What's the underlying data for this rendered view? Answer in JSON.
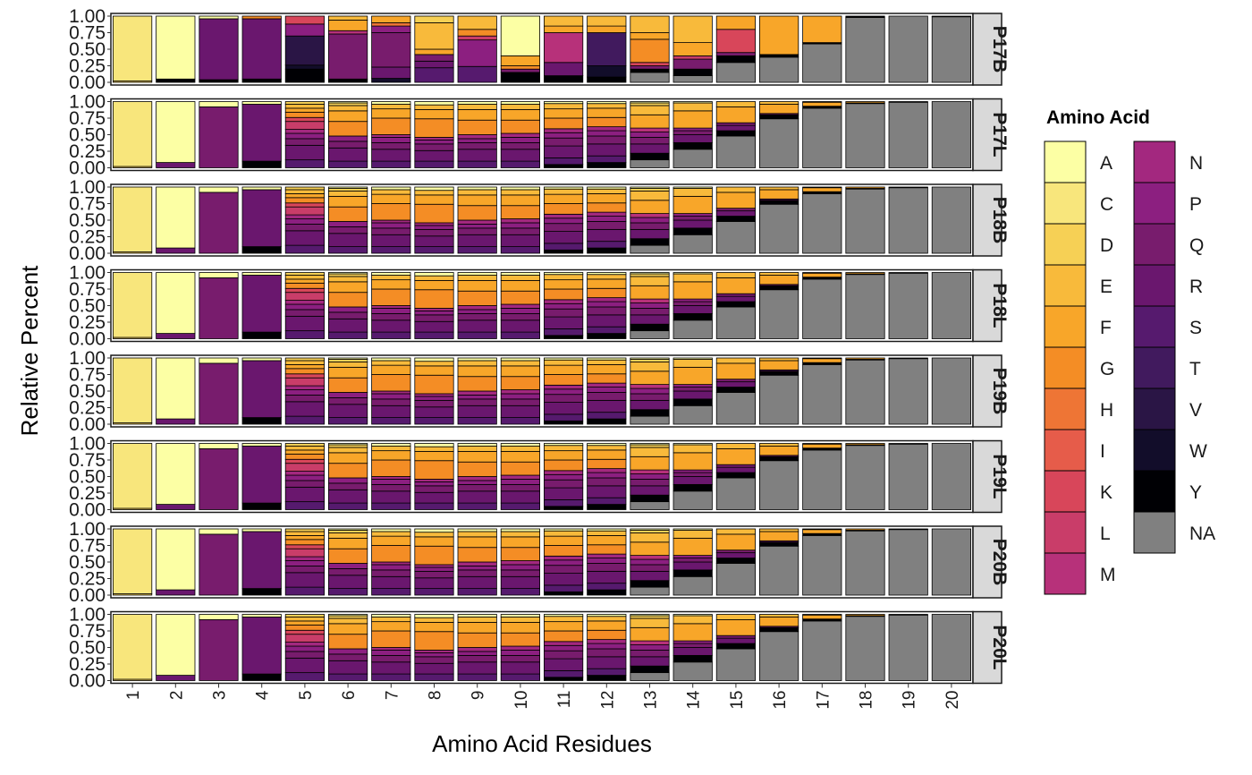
{
  "chart_data": {
    "type": "bar",
    "stacked": true,
    "faceted": true,
    "xlabel": "Amino Acid Residues",
    "ylabel": "Relative Percent",
    "ylim": [
      0,
      1
    ],
    "y_ticks": [
      "0.00",
      "0.25",
      "0.50",
      "0.75",
      "1.00"
    ],
    "categories": [
      "1",
      "2",
      "3",
      "4",
      "5",
      "6",
      "7",
      "8",
      "9",
      "10",
      "11",
      "12",
      "13",
      "14",
      "15",
      "16",
      "17",
      "18",
      "19",
      "20"
    ],
    "panels": [
      "P17B",
      "P17L",
      "P18B",
      "P18L",
      "P19B",
      "P19L",
      "P20B",
      "P20L"
    ],
    "legend": {
      "title": "Amino Acid",
      "placement": "right",
      "entries": [
        "A",
        "C",
        "D",
        "E",
        "F",
        "G",
        "H",
        "I",
        "K",
        "L",
        "M",
        "N",
        "P",
        "Q",
        "R",
        "S",
        "T",
        "V",
        "W",
        "Y",
        "NA"
      ]
    },
    "colors": {
      "A": "#FCFFA4",
      "C": "#F8E67C",
      "D": "#F6D055",
      "E": "#F8BA3B",
      "F": "#F8A629",
      "G": "#F48D25",
      "H": "#EE7535",
      "I": "#E65C4A",
      "K": "#D8465A",
      "L": "#C93D69",
      "M": "#B7317A",
      "N": "#A3287F",
      "P": "#8C1F80",
      "Q": "#781C6D",
      "R": "#6A176E",
      "S": "#561A6E",
      "T": "#411A5E",
      "V": "#2A1545",
      "W": "#120D2A",
      "Y": "#000004",
      "NA": "#808080",
      "panel_border": "#1a1a1a",
      "strip_fill": "#d9d9d9"
    },
    "composition": {
      "P17B": [
        {
          "C": 0.98,
          "D": 0.02
        },
        {
          "A": 0.95,
          "Y": 0.05
        },
        {
          "A": 0.04,
          "R": 0.92,
          "Y": 0.04
        },
        {
          "G": 0.04,
          "R": 0.91,
          "Y": 0.05
        },
        {
          "W": 0.06,
          "K": 0.12,
          "P": 0.18,
          "V": 0.44,
          "Y": 0.2
        },
        {
          "E": 0.06,
          "F": 0.16,
          "Y": 0.05,
          "M": 0.05,
          "Q": 0.68
        },
        {
          "W": 0.06,
          "F": 0.1,
          "H": 0.05,
          "P": 0.1,
          "Q": 0.52,
          "R": 0.17
        },
        {
          "E": 0.4,
          "D": 0.1,
          "F": 0.08,
          "Q": 0.1,
          "R": 0.1,
          "S": 0.22
        },
        {
          "E": 0.2,
          "G": 0.1,
          "L": 0.06,
          "P": 0.4,
          "S": 0.24
        },
        {
          "A": 0.6,
          "G": 0.05,
          "F": 0.15,
          "Q": 0.05,
          "Y": 0.15
        },
        {
          "E": 0.15,
          "F": 0.1,
          "Y": 0.1,
          "M": 0.45,
          "R": 0.2
        },
        {
          "E": 0.15,
          "F": 0.1,
          "Y": 0.08,
          "T": 0.5,
          "W": 0.17
        },
        {
          "E": 0.25,
          "F": 0.1,
          "G": 0.35,
          "K": 0.05,
          "Q": 0.05,
          "Y": 0.05,
          "NA": 0.15
        },
        {
          "E": 0.4,
          "F": 0.2,
          "Y": 0.1,
          "L": 0.05,
          "Q": 0.15,
          "NA": 0.1
        },
        {
          "F": 0.2,
          "K": 0.35,
          "Y": 0.1,
          "Q": 0.05,
          "NA": 0.3
        },
        {
          "F": 0.58,
          "Y": 0.04,
          "NA": 0.38
        },
        {
          "F": 0.4,
          "Y": 0.02,
          "NA": 0.58
        },
        {
          "Y": 0.02,
          "NA": 0.98
        },
        {
          "NA": 1.0
        },
        {
          "Y": 0.01,
          "NA": 0.99
        }
      ],
      "P17L": "profile",
      "P18B": "profile",
      "P18L": "profile",
      "P19B": "profile",
      "P19L": "profile",
      "P20B": "profile",
      "P20L": "profile"
    },
    "profile": [
      {
        "D": 0.02,
        "C": 0.98
      },
      {
        "R": 0.08,
        "A": 0.92
      },
      {
        "Q": 0.92,
        "A": 0.08
      },
      {
        "R": 0.86,
        "Y": 0.1,
        "A": 0.04
      },
      {
        "R": 0.22,
        "S": 0.12,
        "Q": 0.1,
        "P": 0.08,
        "N": 0.06,
        "L": 0.12,
        "K": 0.06,
        "G": 0.08,
        "F": 0.06,
        "E": 0.06,
        "D": 0.04
      },
      {
        "R": 0.2,
        "S": 0.1,
        "Q": 0.1,
        "P": 0.08,
        "G": 0.22,
        "F": 0.16,
        "E": 0.08,
        "D": 0.04,
        "A": 0.02
      },
      {
        "R": 0.18,
        "S": 0.1,
        "Q": 0.1,
        "P": 0.08,
        "N": 0.04,
        "G": 0.25,
        "F": 0.14,
        "E": 0.07,
        "A": 0.04
      },
      {
        "R": 0.16,
        "S": 0.1,
        "Q": 0.1,
        "P": 0.06,
        "N": 0.04,
        "G": 0.28,
        "F": 0.14,
        "E": 0.07,
        "A": 0.05
      },
      {
        "R": 0.18,
        "S": 0.1,
        "Q": 0.1,
        "P": 0.06,
        "N": 0.06,
        "G": 0.22,
        "F": 0.16,
        "E": 0.08,
        "A": 0.04
      },
      {
        "R": 0.18,
        "S": 0.1,
        "Q": 0.1,
        "P": 0.08,
        "N": 0.06,
        "G": 0.2,
        "F": 0.16,
        "E": 0.08,
        "A": 0.04
      },
      {
        "Y": 0.05,
        "R": 0.18,
        "S": 0.1,
        "Q": 0.12,
        "P": 0.08,
        "N": 0.06,
        "G": 0.16,
        "F": 0.14,
        "E": 0.08,
        "A": 0.03
      },
      {
        "Y": 0.08,
        "R": 0.18,
        "S": 0.1,
        "Q": 0.12,
        "P": 0.08,
        "N": 0.06,
        "G": 0.14,
        "F": 0.14,
        "E": 0.07,
        "A": 0.03
      },
      {
        "NA": 0.12,
        "Y": 0.1,
        "R": 0.14,
        "Q": 0.1,
        "P": 0.08,
        "M": 0.06,
        "F": 0.2,
        "E": 0.14,
        "D": 0.04,
        "A": 0.02
      },
      {
        "NA": 0.28,
        "Y": 0.1,
        "R": 0.12,
        "Q": 0.06,
        "P": 0.04,
        "F": 0.26,
        "E": 0.12,
        "A": 0.02
      },
      {
        "NA": 0.48,
        "Y": 0.08,
        "R": 0.08,
        "Q": 0.04,
        "F": 0.24,
        "E": 0.08
      },
      {
        "NA": 0.74,
        "Y": 0.06,
        "Q": 0.02,
        "F": 0.14,
        "E": 0.04
      },
      {
        "NA": 0.9,
        "Y": 0.03,
        "F": 0.06,
        "E": 0.01
      },
      {
        "NA": 0.97,
        "Y": 0.01,
        "F": 0.02
      },
      {
        "NA": 0.99,
        "F": 0.01
      },
      {
        "NA": 1.0
      }
    ]
  }
}
